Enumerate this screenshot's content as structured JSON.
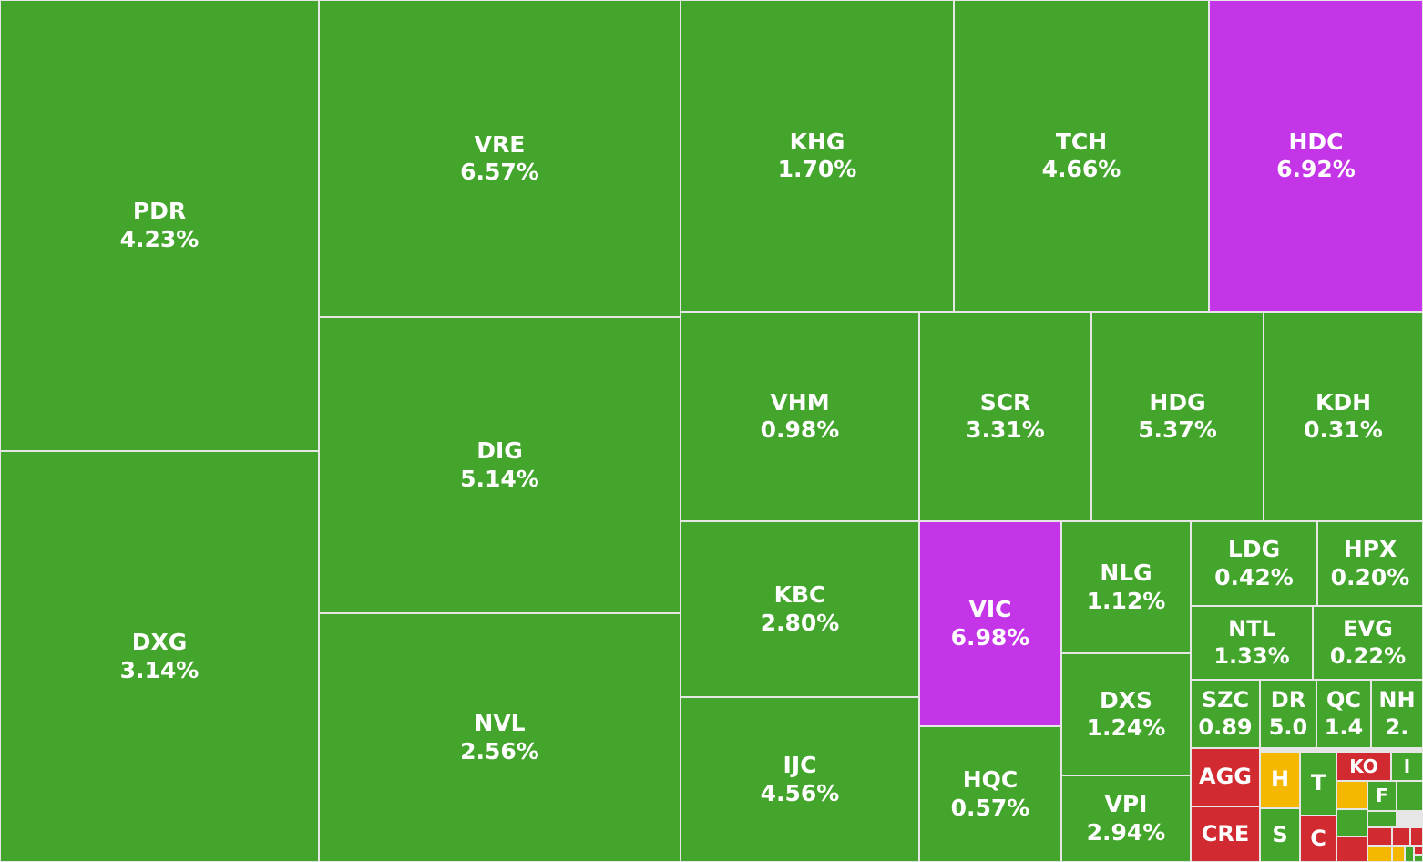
{
  "colors": {
    "up": "#43a52c",
    "ceiling": "#c435e8",
    "down": "#d22a31",
    "flat": "#f5b800",
    "border": "#e6e6e6",
    "text": "#ffffff"
  },
  "chart_data": {
    "type": "treemap",
    "title": "",
    "tiles": [
      {
        "symbol": "PDR",
        "change": "4.23%",
        "status": "up"
      },
      {
        "symbol": "DXG",
        "change": "3.14%",
        "status": "up"
      },
      {
        "symbol": "VRE",
        "change": "6.57%",
        "status": "up"
      },
      {
        "symbol": "DIG",
        "change": "5.14%",
        "status": "up"
      },
      {
        "symbol": "NVL",
        "change": "2.56%",
        "status": "up"
      },
      {
        "symbol": "KHG",
        "change": "1.70%",
        "status": "up"
      },
      {
        "symbol": "TCH",
        "change": "4.66%",
        "status": "up"
      },
      {
        "symbol": "HDC",
        "change": "6.92%",
        "status": "ceiling"
      },
      {
        "symbol": "VHM",
        "change": "0.98%",
        "status": "up"
      },
      {
        "symbol": "SCR",
        "change": "3.31%",
        "status": "up"
      },
      {
        "symbol": "HDG",
        "change": "5.37%",
        "status": "up"
      },
      {
        "symbol": "KDH",
        "change": "0.31%",
        "status": "up"
      },
      {
        "symbol": "KBC",
        "change": "2.80%",
        "status": "up"
      },
      {
        "symbol": "IJC",
        "change": "4.56%",
        "status": "up"
      },
      {
        "symbol": "VIC",
        "change": "6.98%",
        "status": "ceiling"
      },
      {
        "symbol": "HQC",
        "change": "0.57%",
        "status": "up"
      },
      {
        "symbol": "NLG",
        "change": "1.12%",
        "status": "up"
      },
      {
        "symbol": "DXS",
        "change": "1.24%",
        "status": "up"
      },
      {
        "symbol": "VPI",
        "change": "2.94%",
        "status": "up"
      },
      {
        "symbol": "LDG",
        "change": "0.42%",
        "status": "up"
      },
      {
        "symbol": "HPX",
        "change": "0.20%",
        "status": "up"
      },
      {
        "symbol": "NTL",
        "change": "1.33%",
        "status": "up"
      },
      {
        "symbol": "EVG",
        "change": "0.22%",
        "status": "up"
      },
      {
        "symbol": "SZC",
        "change": "0.89",
        "status": "up"
      },
      {
        "symbol": "DR",
        "change": "5.0",
        "status": "up"
      },
      {
        "symbol": "QC",
        "change": "1.4",
        "status": "up"
      },
      {
        "symbol": "NH",
        "change": "2.",
        "status": "up"
      },
      {
        "symbol": "AGG",
        "change": "",
        "status": "down"
      },
      {
        "symbol": "CRE",
        "change": "",
        "status": "down"
      },
      {
        "symbol": "H",
        "change": "",
        "status": "flat"
      },
      {
        "symbol": "S",
        "change": "",
        "status": "up"
      },
      {
        "symbol": "T",
        "change": "",
        "status": "up"
      },
      {
        "symbol": "C",
        "change": "",
        "status": "down"
      },
      {
        "symbol": "KO",
        "change": "",
        "status": "down"
      },
      {
        "symbol": "I",
        "change": "",
        "status": "up"
      },
      {
        "symbol": "F",
        "change": "",
        "status": "up"
      },
      {
        "symbol": "",
        "change": "",
        "status": "flat"
      },
      {
        "symbol": "",
        "change": "",
        "status": "up"
      },
      {
        "symbol": "",
        "change": "",
        "status": "up"
      },
      {
        "symbol": "",
        "change": "",
        "status": "up"
      },
      {
        "symbol": "",
        "change": "",
        "status": "down"
      },
      {
        "symbol": "",
        "change": "",
        "status": "down"
      },
      {
        "symbol": "",
        "change": "",
        "status": "down"
      },
      {
        "symbol": "",
        "change": "",
        "status": "down"
      },
      {
        "symbol": "",
        "change": "",
        "status": "flat"
      },
      {
        "symbol": "",
        "change": "",
        "status": "flat"
      },
      {
        "symbol": "",
        "change": "",
        "status": "up"
      },
      {
        "symbol": "",
        "change": "",
        "status": "down"
      },
      {
        "symbol": "",
        "change": "",
        "status": "up"
      }
    ]
  }
}
